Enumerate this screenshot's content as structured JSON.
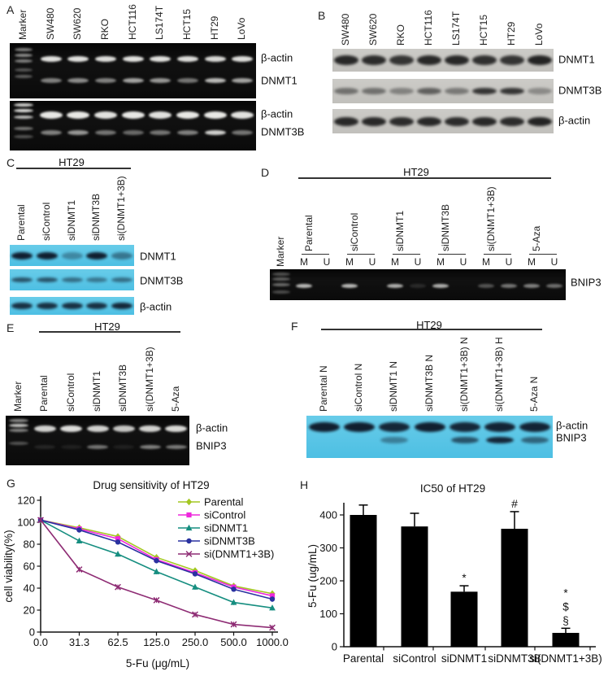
{
  "figure": {
    "panels": {
      "A": {
        "letter": "A",
        "lane_labels": [
          "Marker",
          "SW480",
          "SW620",
          "RKO",
          "HCT116",
          "LS174T",
          "HCT15",
          "HT29",
          "LoVo"
        ],
        "gels": [
          {
            "rows": [
              {
                "label": "β-actin",
                "band_intensities": [
                  0.92,
                  0.92,
                  0.9,
                  0.92,
                  0.92,
                  0.9,
                  0.88,
                  0.9
                ]
              },
              {
                "label": "DNMT1",
                "band_intensities": [
                  0.5,
                  0.55,
                  0.5,
                  0.65,
                  0.6,
                  0.45,
                  0.75,
                  0.65
                ]
              }
            ]
          },
          {
            "rows": [
              {
                "label": "β-actin",
                "band_intensities": [
                  0.95,
                  0.95,
                  0.92,
                  0.95,
                  0.92,
                  0.95,
                  0.95,
                  0.92
                ]
              },
              {
                "label": "DNMT3B",
                "band_intensities": [
                  0.5,
                  0.6,
                  0.45,
                  0.4,
                  0.45,
                  0.5,
                  0.85,
                  0.45
                ]
              }
            ]
          }
        ]
      },
      "B": {
        "letter": "B",
        "lane_labels": [
          "SW480",
          "SW620",
          "RKO",
          "HCT116",
          "LS174T",
          "HCT15",
          "HT29",
          "LoVo"
        ],
        "blots": [
          {
            "label": "DNMT1",
            "band_intensities": [
              0.92,
              0.9,
              0.85,
              0.92,
              0.92,
              0.88,
              0.85,
              0.95
            ]
          },
          {
            "label": "DNMT3B",
            "band_intensities": [
              0.5,
              0.5,
              0.4,
              0.6,
              0.45,
              0.85,
              0.85,
              0.35
            ]
          },
          {
            "label": "β-actin",
            "band_intensities": [
              0.92,
              0.92,
              0.9,
              0.92,
              0.9,
              0.92,
              0.9,
              0.95
            ]
          }
        ]
      },
      "C": {
        "letter": "C",
        "header": "HT29",
        "lane_labels": [
          "Parental",
          "siControl",
          "siDNMT1",
          "siDNMT3B",
          "si(DNMT1+3B)"
        ],
        "blots": [
          {
            "label": "DNMT1",
            "band_intensities": [
              0.95,
              0.95,
              0.35,
              0.95,
              0.45
            ]
          },
          {
            "label": "DNMT3B",
            "band_intensities": [
              0.65,
              0.65,
              0.5,
              0.45,
              0.5
            ]
          },
          {
            "label": "β-actin",
            "band_intensities": [
              0.85,
              0.85,
              0.85,
              0.85,
              0.9
            ]
          }
        ]
      },
      "D": {
        "letter": "D",
        "header": "HT29",
        "marker_label": "Marker",
        "group_labels": [
          "Parental",
          "siControl",
          "siDNMT1",
          "siDNMT3B",
          "si(DNMT1+3B)",
          "5-Aza"
        ],
        "lane_pair_labels": [
          "M",
          "U"
        ],
        "row_label": "BNIP3",
        "band_intensities": [
          0.75,
          0,
          0.75,
          0,
          0.7,
          0.12,
          0.7,
          0,
          0.3,
          0.45,
          0.5,
          0.42
        ]
      },
      "E": {
        "letter": "E",
        "header": "HT29",
        "lane_labels": [
          "Marker",
          "Parental",
          "siControl",
          "siDNMT1",
          "siDNMT3B",
          "si(DNMT1+3B)",
          "5-Aza"
        ],
        "rows": [
          {
            "label": "β-actin",
            "band_intensities": [
              0.85,
              0.9,
              0.85,
              0.8,
              0.85,
              0.88
            ]
          },
          {
            "label": "BNIP3",
            "band_intensities": [
              0.1,
              0.08,
              0.45,
              0.08,
              0.5,
              0.48
            ]
          }
        ]
      },
      "F": {
        "letter": "F",
        "header": "HT29",
        "lane_labels": [
          "Parental N",
          "siControl N",
          "siDNMT1 N",
          "siDNMT3B N",
          "si(DNMT1+3B) N",
          "si(DNMT1+3B) H",
          "5-Aza N"
        ],
        "rows": [
          {
            "label": "β-actin",
            "band_intensities": [
              0.95,
              0.95,
              0.9,
              0.95,
              0.9,
              0.92,
              0.92
            ]
          },
          {
            "label": "BNIP3",
            "band_intensities": [
              0,
              0,
              0.4,
              0,
              0.65,
              0.9,
              0.55
            ]
          }
        ]
      },
      "G": {
        "letter": "G"
      },
      "H": {
        "letter": "H"
      }
    }
  },
  "chart_data": [
    {
      "type": "line",
      "panel": "G",
      "title": "Drug sensitivity of HT29",
      "xlabel": "5-Fu (μg/mL)",
      "ylabel": "cell viability(%)",
      "x_ticklabels": [
        "0.0",
        "31.3",
        "62.5",
        "125.0",
        "250.0",
        "500.0",
        "1000.0"
      ],
      "ylim": [
        0,
        120
      ],
      "yticks": [
        0,
        20,
        40,
        60,
        80,
        100,
        120
      ],
      "legend_position": "top-right",
      "grid": false,
      "series": [
        {
          "name": "Parental",
          "color": "#a4c722",
          "marker": "diamond",
          "values": [
            102,
            95,
            87,
            68,
            56,
            42,
            35
          ]
        },
        {
          "name": "siControl",
          "color": "#ee28dc",
          "marker": "square",
          "values": [
            102,
            94,
            85,
            66,
            54,
            41,
            33
          ]
        },
        {
          "name": "siDNMT1",
          "color": "#168e80",
          "marker": "triangle",
          "values": [
            102,
            83,
            71,
            55,
            41,
            27,
            22
          ]
        },
        {
          "name": "siDNMT3B",
          "color": "#2a32a0",
          "marker": "circle",
          "values": [
            102,
            93,
            82,
            65,
            53,
            39,
            30
          ]
        },
        {
          "name": "si(DNMT1+3B)",
          "color": "#8e2c74",
          "marker": "x",
          "values": [
            102,
            57,
            41,
            29,
            16,
            7,
            4
          ]
        }
      ]
    },
    {
      "type": "bar",
      "panel": "H",
      "title": "IC50 of HT29",
      "ylabel": "5-Fu (ug/mL)",
      "categories": [
        "Parental",
        "siControl",
        "siDNMT1",
        "siDNMT3B",
        "si(DNMT1+3B)"
      ],
      "values": [
        400,
        365,
        167,
        358,
        42
      ],
      "errors": [
        30,
        40,
        18,
        52,
        14
      ],
      "annotations": [
        [],
        [],
        [
          "*"
        ],
        [
          "#"
        ],
        [
          "*",
          "$",
          "§"
        ]
      ],
      "ylim": [
        0,
        430
      ],
      "yticks": [
        0,
        100,
        200,
        300,
        400
      ],
      "bar_color": "#000000",
      "grid": false
    }
  ]
}
